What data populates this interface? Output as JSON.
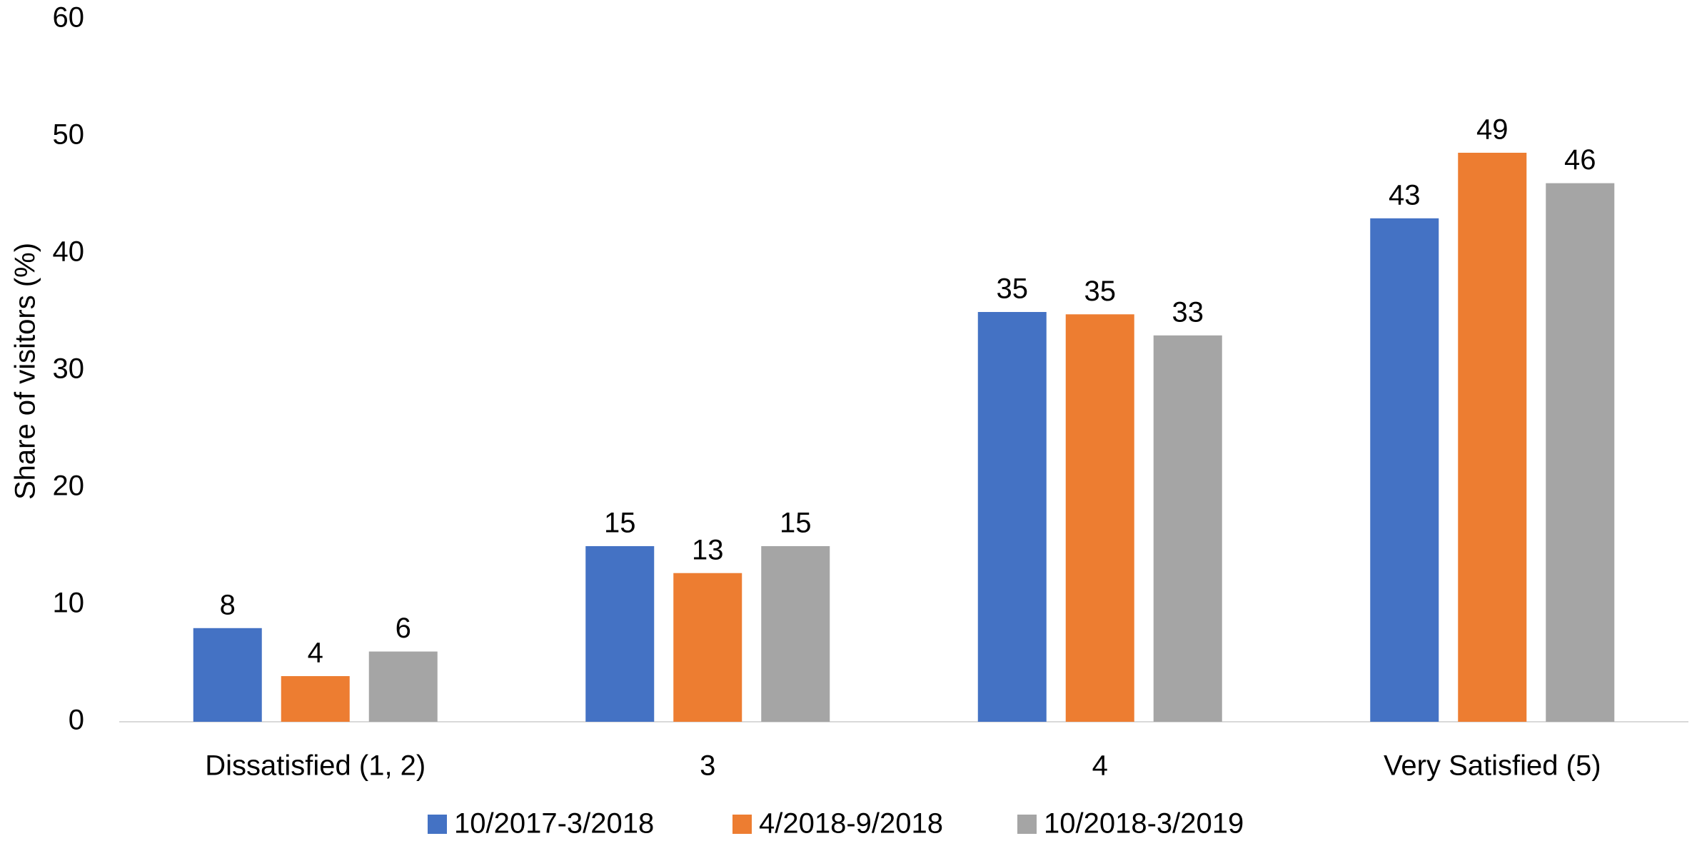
{
  "chart_data": {
    "type": "bar",
    "y_label": "Share of visitors (%)",
    "categories": [
      "Dissatisfied (1, 2)",
      "3",
      "4",
      "Very Satisfied (5)"
    ],
    "series": [
      {
        "name": "10/2017-3/2018",
        "color": "#4472c4",
        "values": [
          8,
          15,
          35,
          43
        ]
      },
      {
        "name": "4/2018-9/2018",
        "color": "#ed7d31",
        "values": [
          3.9,
          12.7,
          34.8,
          48.6
        ],
        "value_labels": [
          "4",
          "13",
          "35",
          "49"
        ]
      },
      {
        "name": "10/2018-3/2019",
        "color": "#a5a5a5",
        "values": [
          6,
          15,
          33,
          46
        ]
      }
    ],
    "ylim": [
      0,
      60
    ],
    "yticks": [
      0,
      10,
      20,
      30,
      40,
      50,
      60
    ],
    "grid": false,
    "legend": "bottom"
  }
}
